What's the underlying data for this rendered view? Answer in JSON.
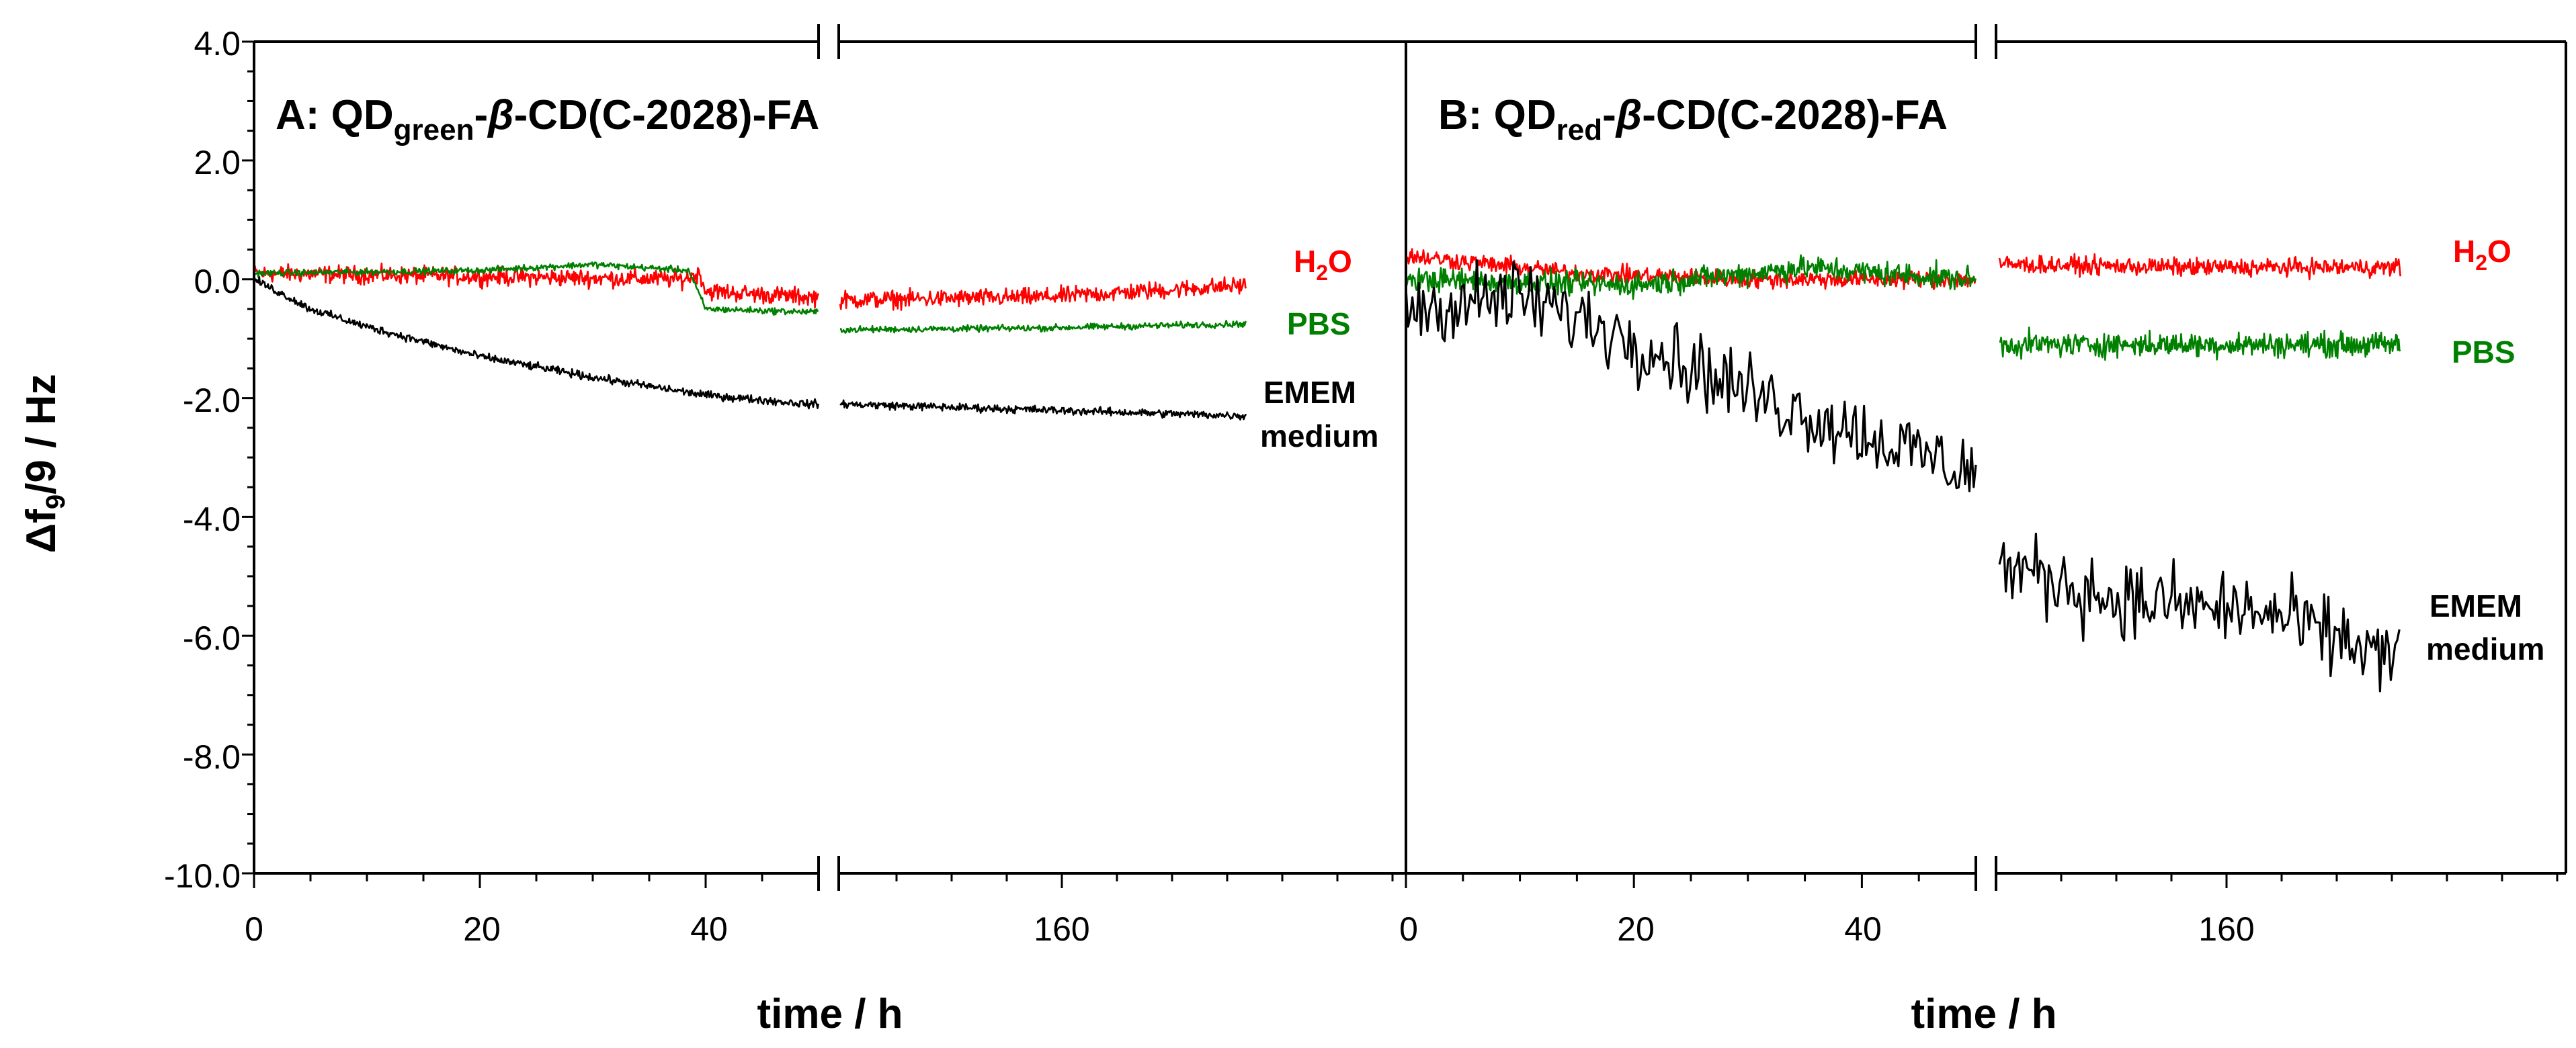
{
  "chart_data": {
    "type": "line",
    "ylabel": {
      "main": "Δf",
      "sub": "9",
      "rest": "/9 / Hz"
    },
    "ylim": [
      -10.0,
      4.0
    ],
    "yticks": [
      "4.0",
      "2.0",
      "0.0",
      "-2.0",
      "-4.0",
      "-6.0",
      "-8.0",
      "-10.0"
    ],
    "xlabel": "time / h",
    "colors": {
      "h2o": "#ff0000",
      "pbs": "#008000",
      "emem": "#000000"
    },
    "panels": [
      {
        "id": "A",
        "title": {
          "prefix": "A: QD",
          "sub": "green",
          "dash": "-",
          "beta": "β",
          "rest": "-CD(C-2028)-FA"
        },
        "x_ticks_left": [
          "0",
          "20",
          "40"
        ],
        "x_ticks_right": [
          "160"
        ],
        "xlim_left": [
          0,
          50
        ],
        "labels": {
          "h2o_main": "H",
          "h2o_sub": "2",
          "h2o_end": "O",
          "pbs": "PBS",
          "emem_line1": "EMEM",
          "emem_line2": "medium"
        },
        "series": [
          {
            "name": "H2O",
            "noise": 0.22,
            "left": [
              [
                0,
                0.1
              ],
              [
                38,
                0.0
              ],
              [
                39.5,
                0.1
              ],
              [
                40,
                -0.2
              ],
              [
                49,
                -0.3
              ]
            ],
            "right": [
              [
                0,
                -0.35
              ],
              [
                0.5,
                -0.3
              ],
              [
                1,
                -0.1
              ]
            ]
          },
          {
            "name": "PBS",
            "noise": 0.08,
            "left": [
              [
                0,
                0.1
              ],
              [
                20,
                0.15
              ],
              [
                30,
                0.25
              ],
              [
                38.5,
                0.15
              ],
              [
                40,
                -0.5
              ],
              [
                49,
                -0.55
              ]
            ],
            "right": [
              [
                0,
                -0.85
              ],
              [
                0.5,
                -0.82
              ],
              [
                1,
                -0.75
              ]
            ]
          },
          {
            "name": "EMEM medium",
            "noise": 0.1,
            "left": [
              [
                0,
                0.0
              ],
              [
                5,
                -0.5
              ],
              [
                10,
                -0.8
              ],
              [
                20,
                -1.3
              ],
              [
                30,
                -1.65
              ],
              [
                40,
                -1.95
              ],
              [
                49,
                -2.1
              ]
            ],
            "right": [
              [
                0,
                -2.1
              ],
              [
                0.5,
                -2.2
              ],
              [
                1,
                -2.3
              ]
            ]
          }
        ]
      },
      {
        "id": "B",
        "title": {
          "prefix": "B: QD",
          "sub": "red",
          "dash": "-",
          "beta": "β",
          "rest": "-CD(C-2028)-FA"
        },
        "x_ticks_left": [
          "0",
          "20",
          "40"
        ],
        "x_ticks_right": [
          "160"
        ],
        "xlim_left": [
          0,
          50
        ],
        "labels": {
          "h2o_main": "H",
          "h2o_sub": "2",
          "h2o_end": "O",
          "pbs": "PBS",
          "emem_line1": "EMEM",
          "emem_line2": "medium"
        },
        "series": [
          {
            "name": "H2O",
            "noise": 0.22,
            "left": [
              [
                0,
                0.4
              ],
              [
                15,
                0.1
              ],
              [
                30,
                0.0
              ],
              [
                49,
                0.0
              ]
            ],
            "right": [
              [
                0,
                0.25
              ],
              [
                0.5,
                0.2
              ],
              [
                1,
                0.2
              ]
            ]
          },
          {
            "name": "PBS",
            "noise": 0.3,
            "left": [
              [
                0,
                0.0
              ],
              [
                20,
                -0.1
              ],
              [
                35,
                0.2
              ],
              [
                49,
                0.0
              ]
            ],
            "right": [
              [
                0,
                -1.1
              ],
              [
                0.5,
                -1.1
              ],
              [
                1,
                -1.1
              ]
            ]
          },
          {
            "name": "EMEM medium",
            "noise": 0.95,
            "left": [
              [
                0,
                -0.5
              ],
              [
                10,
                -0.3
              ],
              [
                20,
                -1.0
              ],
              [
                30,
                -1.9
              ],
              [
                40,
                -2.6
              ],
              [
                49,
                -3.2
              ]
            ],
            "right": [
              [
                0,
                -4.8
              ],
              [
                0.3,
                -5.4
              ],
              [
                0.65,
                -5.6
              ],
              [
                1,
                -6.4
              ]
            ]
          }
        ]
      }
    ]
  }
}
